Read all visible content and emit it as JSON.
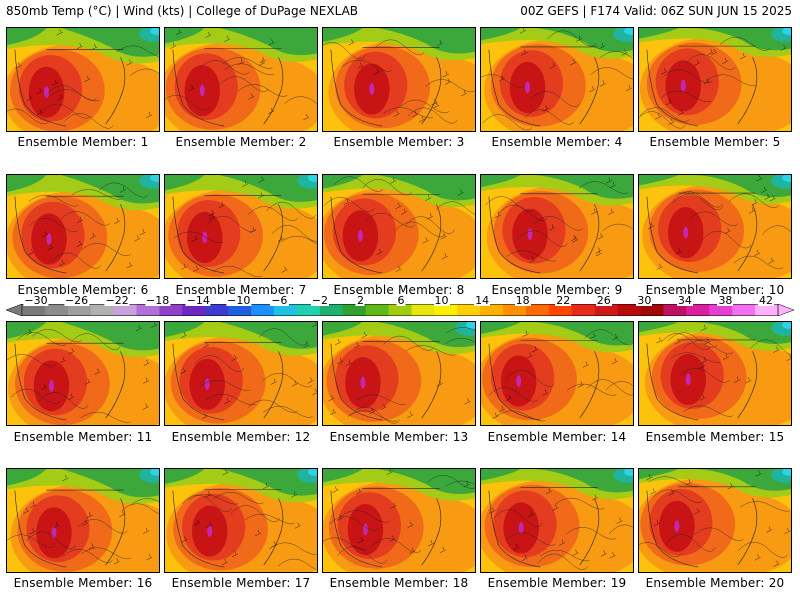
{
  "header": {
    "title_left": "850mb Temp (°C) | Wind (kts) | College of DuPage NEXLAB",
    "title_right": "00Z GEFS | F174 Valid: 06Z SUN JUN 15 2025"
  },
  "colorbar": {
    "labels": [
      "-30",
      "-26",
      "-22",
      "-18",
      "-14",
      "-10",
      "-6",
      "-2",
      "2",
      "6",
      "10",
      "14",
      "18",
      "22",
      "26",
      "30",
      "34",
      "38",
      "42"
    ],
    "colors": [
      "#7a7a7a",
      "#8c8c8c",
      "#9e9e9e",
      "#b0b0b0",
      "#c8a0dc",
      "#b070d8",
      "#9040c8",
      "#6a28c0",
      "#3c3cd0",
      "#2060e0",
      "#1e90ff",
      "#20c0e0",
      "#20d0b0",
      "#20b070",
      "#30a030",
      "#60b818",
      "#a0cc10",
      "#e6e60a",
      "#ffee00",
      "#ffd000",
      "#ffb000",
      "#ff9000",
      "#ff6a00",
      "#ff4400",
      "#e82a1a",
      "#d01818",
      "#b80c0c",
      "#a00808",
      "#c01060",
      "#d820a0",
      "#e640d0",
      "#f070f0",
      "#ffb0ff"
    ],
    "colors_note": "",
    "min": -30,
    "max": 42
  },
  "map": {
    "colors": {
      "deep_red": "#c81414",
      "red": "#e43c1e",
      "orange_red": "#f06a1a",
      "orange": "#f89a12",
      "yellow_orange": "#fcc20c",
      "yellow": "#f6dc0a",
      "lime": "#a4cc16",
      "green": "#3ca83c",
      "teal": "#20b4a0",
      "cyan": "#2ad4e6",
      "magenta": "#c228b4",
      "contour": "#222222"
    }
  },
  "panels": [
    {
      "label": "Ensemble Member: 1"
    },
    {
      "label": "Ensemble Member: 2"
    },
    {
      "label": "Ensemble Member: 3"
    },
    {
      "label": "Ensemble Member: 4"
    },
    {
      "label": "Ensemble Member: 5"
    },
    {
      "label": "Ensemble Member: 6"
    },
    {
      "label": "Ensemble Member: 7"
    },
    {
      "label": "Ensemble Member: 8"
    },
    {
      "label": "Ensemble Member: 9"
    },
    {
      "label": "Ensemble Member: 10"
    },
    {
      "label": "Ensemble Member: 11"
    },
    {
      "label": "Ensemble Member: 12"
    },
    {
      "label": "Ensemble Member: 13"
    },
    {
      "label": "Ensemble Member: 14"
    },
    {
      "label": "Ensemble Member: 15"
    },
    {
      "label": "Ensemble Member: 16"
    },
    {
      "label": "Ensemble Member: 17"
    },
    {
      "label": "Ensemble Member: 18"
    },
    {
      "label": "Ensemble Member: 19"
    },
    {
      "label": "Ensemble Member: 20"
    }
  ]
}
